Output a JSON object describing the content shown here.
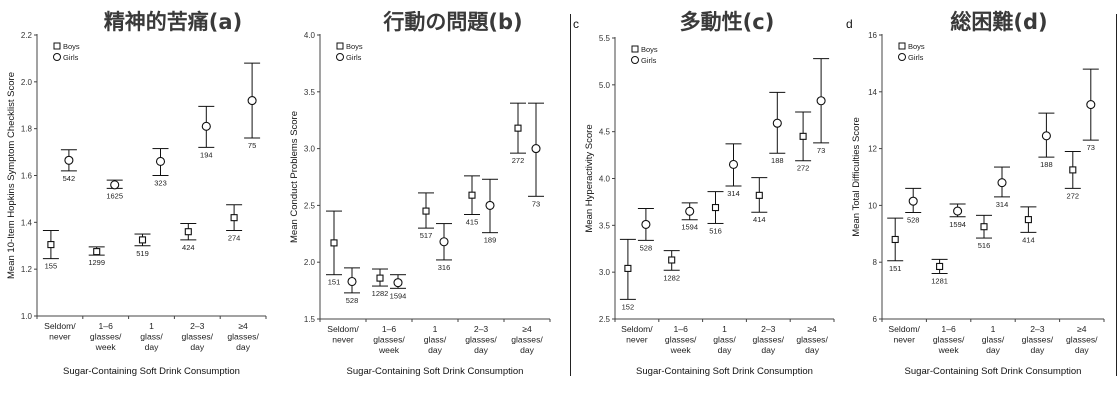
{
  "chart_data": [
    {
      "type": "scatter",
      "title": "精神的苦痛(a)",
      "ylabel": "Mean 10-Item Hopkins Symptom Checklist Score",
      "xlabel": "Sugar-Containing Soft Drink Consumption",
      "categories": [
        "Seldom/\nnever",
        "1–6\nglasses/\nweek",
        "1\nglass/\nday",
        "2–3\nglasses/\nday",
        "≥4\nglasses/\nday"
      ],
      "ylim": [
        1.0,
        2.2
      ],
      "yticks": [
        "1.0",
        "1.2",
        "1.4",
        "1.6",
        "1.8",
        "2.0",
        "2.2"
      ],
      "legend": [
        "Boys",
        "Girls"
      ],
      "legend_position": "top-left",
      "series": [
        {
          "name": "Boys",
          "marker": "square",
          "values": [
            1.305,
            1.275,
            1.325,
            1.36,
            1.42
          ],
          "lower": [
            1.245,
            1.26,
            1.3,
            1.325,
            1.365
          ],
          "upper": [
            1.365,
            1.295,
            1.35,
            1.395,
            1.475
          ],
          "n": [
            "155",
            "1299",
            "519",
            "424",
            "274"
          ]
        },
        {
          "name": "Girls",
          "marker": "circle",
          "values": [
            1.665,
            1.56,
            1.66,
            1.81,
            1.92
          ],
          "lower": [
            1.62,
            1.545,
            1.6,
            1.72,
            1.76
          ],
          "upper": [
            1.71,
            1.58,
            1.715,
            1.895,
            2.08
          ],
          "n": [
            "542",
            "1625",
            "323",
            "194",
            "75"
          ]
        }
      ]
    },
    {
      "type": "scatter",
      "title": "行動の問題(b)",
      "ylabel": "Mean Conduct Problems Score",
      "xlabel": "Sugar-Containing Soft Drink Consumption",
      "categories": [
        "Seldom/\nnever",
        "1–6\nglasses/\nweek",
        "1\nglass/\nday",
        "2–3\nglasses/\nday",
        "≥4\nglasses/\nday"
      ],
      "ylim": [
        1.5,
        4.0
      ],
      "yticks": [
        "1.5",
        "2.0",
        "2.5",
        "3.0",
        "3.5",
        "4.0"
      ],
      "legend": [
        "Boys",
        "Girls"
      ],
      "legend_position": "top-left",
      "series": [
        {
          "name": "Boys",
          "marker": "square",
          "values": [
            2.17,
            1.86,
            2.45,
            2.59,
            3.18
          ],
          "lower": [
            1.89,
            1.79,
            2.3,
            2.42,
            2.96
          ],
          "upper": [
            2.45,
            1.94,
            2.61,
            2.76,
            3.4
          ],
          "n": [
            "151",
            "1282",
            "517",
            "415",
            "272"
          ]
        },
        {
          "name": "Girls",
          "marker": "circle",
          "values": [
            1.83,
            1.82,
            2.18,
            2.5,
            3.0
          ],
          "lower": [
            1.73,
            1.77,
            2.02,
            2.26,
            2.58
          ],
          "upper": [
            1.95,
            1.89,
            2.34,
            2.73,
            3.4
          ],
          "n": [
            "528",
            "1594",
            "316",
            "189",
            "73"
          ]
        }
      ]
    },
    {
      "type": "scatter",
      "title": "多動性(c)",
      "letter": "c",
      "ylabel": "Mean Hyperactivity Score",
      "xlabel": "Sugar-Containing Soft Drink Consumption",
      "categories": [
        "Seldom/\nnever",
        "1–6\nglasses/\nweek",
        "1\nglass/\nday",
        "2–3\nglasses/\nday",
        "≥4\nglasses/\nday"
      ],
      "ylim": [
        2.5,
        5.5
      ],
      "yticks": [
        "2.5",
        "3.0",
        "3.5",
        "4.0",
        "4.5",
        "5.0",
        "5.5"
      ],
      "legend": [
        "Boys",
        "Girls"
      ],
      "legend_position": "top-left",
      "series": [
        {
          "name": "Boys",
          "marker": "square",
          "values": [
            3.04,
            3.13,
            3.69,
            3.82,
            4.45
          ],
          "lower": [
            2.71,
            3.02,
            3.52,
            3.64,
            4.19
          ],
          "upper": [
            3.35,
            3.23,
            3.86,
            4.01,
            4.71
          ],
          "n": [
            "152",
            "1282",
            "516",
            "414",
            "272"
          ]
        },
        {
          "name": "Girls",
          "marker": "circle",
          "values": [
            3.51,
            3.65,
            4.15,
            4.59,
            4.83
          ],
          "lower": [
            3.34,
            3.56,
            3.92,
            4.27,
            4.38
          ],
          "upper": [
            3.68,
            3.74,
            4.37,
            4.92,
            5.28
          ],
          "n": [
            "528",
            "1594",
            "314",
            "188",
            "73"
          ]
        }
      ]
    },
    {
      "type": "scatter",
      "title": "総困難(d)",
      "letter": "d",
      "ylabel": "Mean Total Difficulties Score",
      "xlabel": "Sugar-Containing Soft Drink Consumption",
      "categories": [
        "Seldom/\nnever",
        "1–6\nglasses/\nweek",
        "1\nglass/\nday",
        "2–3\nglasses/\nday",
        "≥4\nglasses/\nday"
      ],
      "ylim": [
        6,
        16
      ],
      "yticks": [
        "6",
        "8",
        "10",
        "12",
        "14",
        "16"
      ],
      "legend": [
        "Boys",
        "Girls"
      ],
      "legend_position": "top-left",
      "series": [
        {
          "name": "Boys",
          "marker": "square",
          "values": [
            8.8,
            7.85,
            9.25,
            9.5,
            11.25
          ],
          "lower": [
            8.05,
            7.6,
            8.85,
            9.05,
            10.6
          ],
          "upper": [
            9.55,
            8.1,
            9.65,
            9.95,
            11.9
          ],
          "n": [
            "151",
            "1281",
            "516",
            "414",
            "272"
          ]
        },
        {
          "name": "Girls",
          "marker": "circle",
          "values": [
            10.15,
            9.8,
            10.8,
            12.45,
            13.55
          ],
          "lower": [
            9.75,
            9.6,
            10.3,
            11.7,
            12.3
          ],
          "upper": [
            10.6,
            10.05,
            11.35,
            13.25,
            14.8
          ],
          "n": [
            "528",
            "1594",
            "314",
            "188",
            "73"
          ]
        }
      ]
    }
  ]
}
